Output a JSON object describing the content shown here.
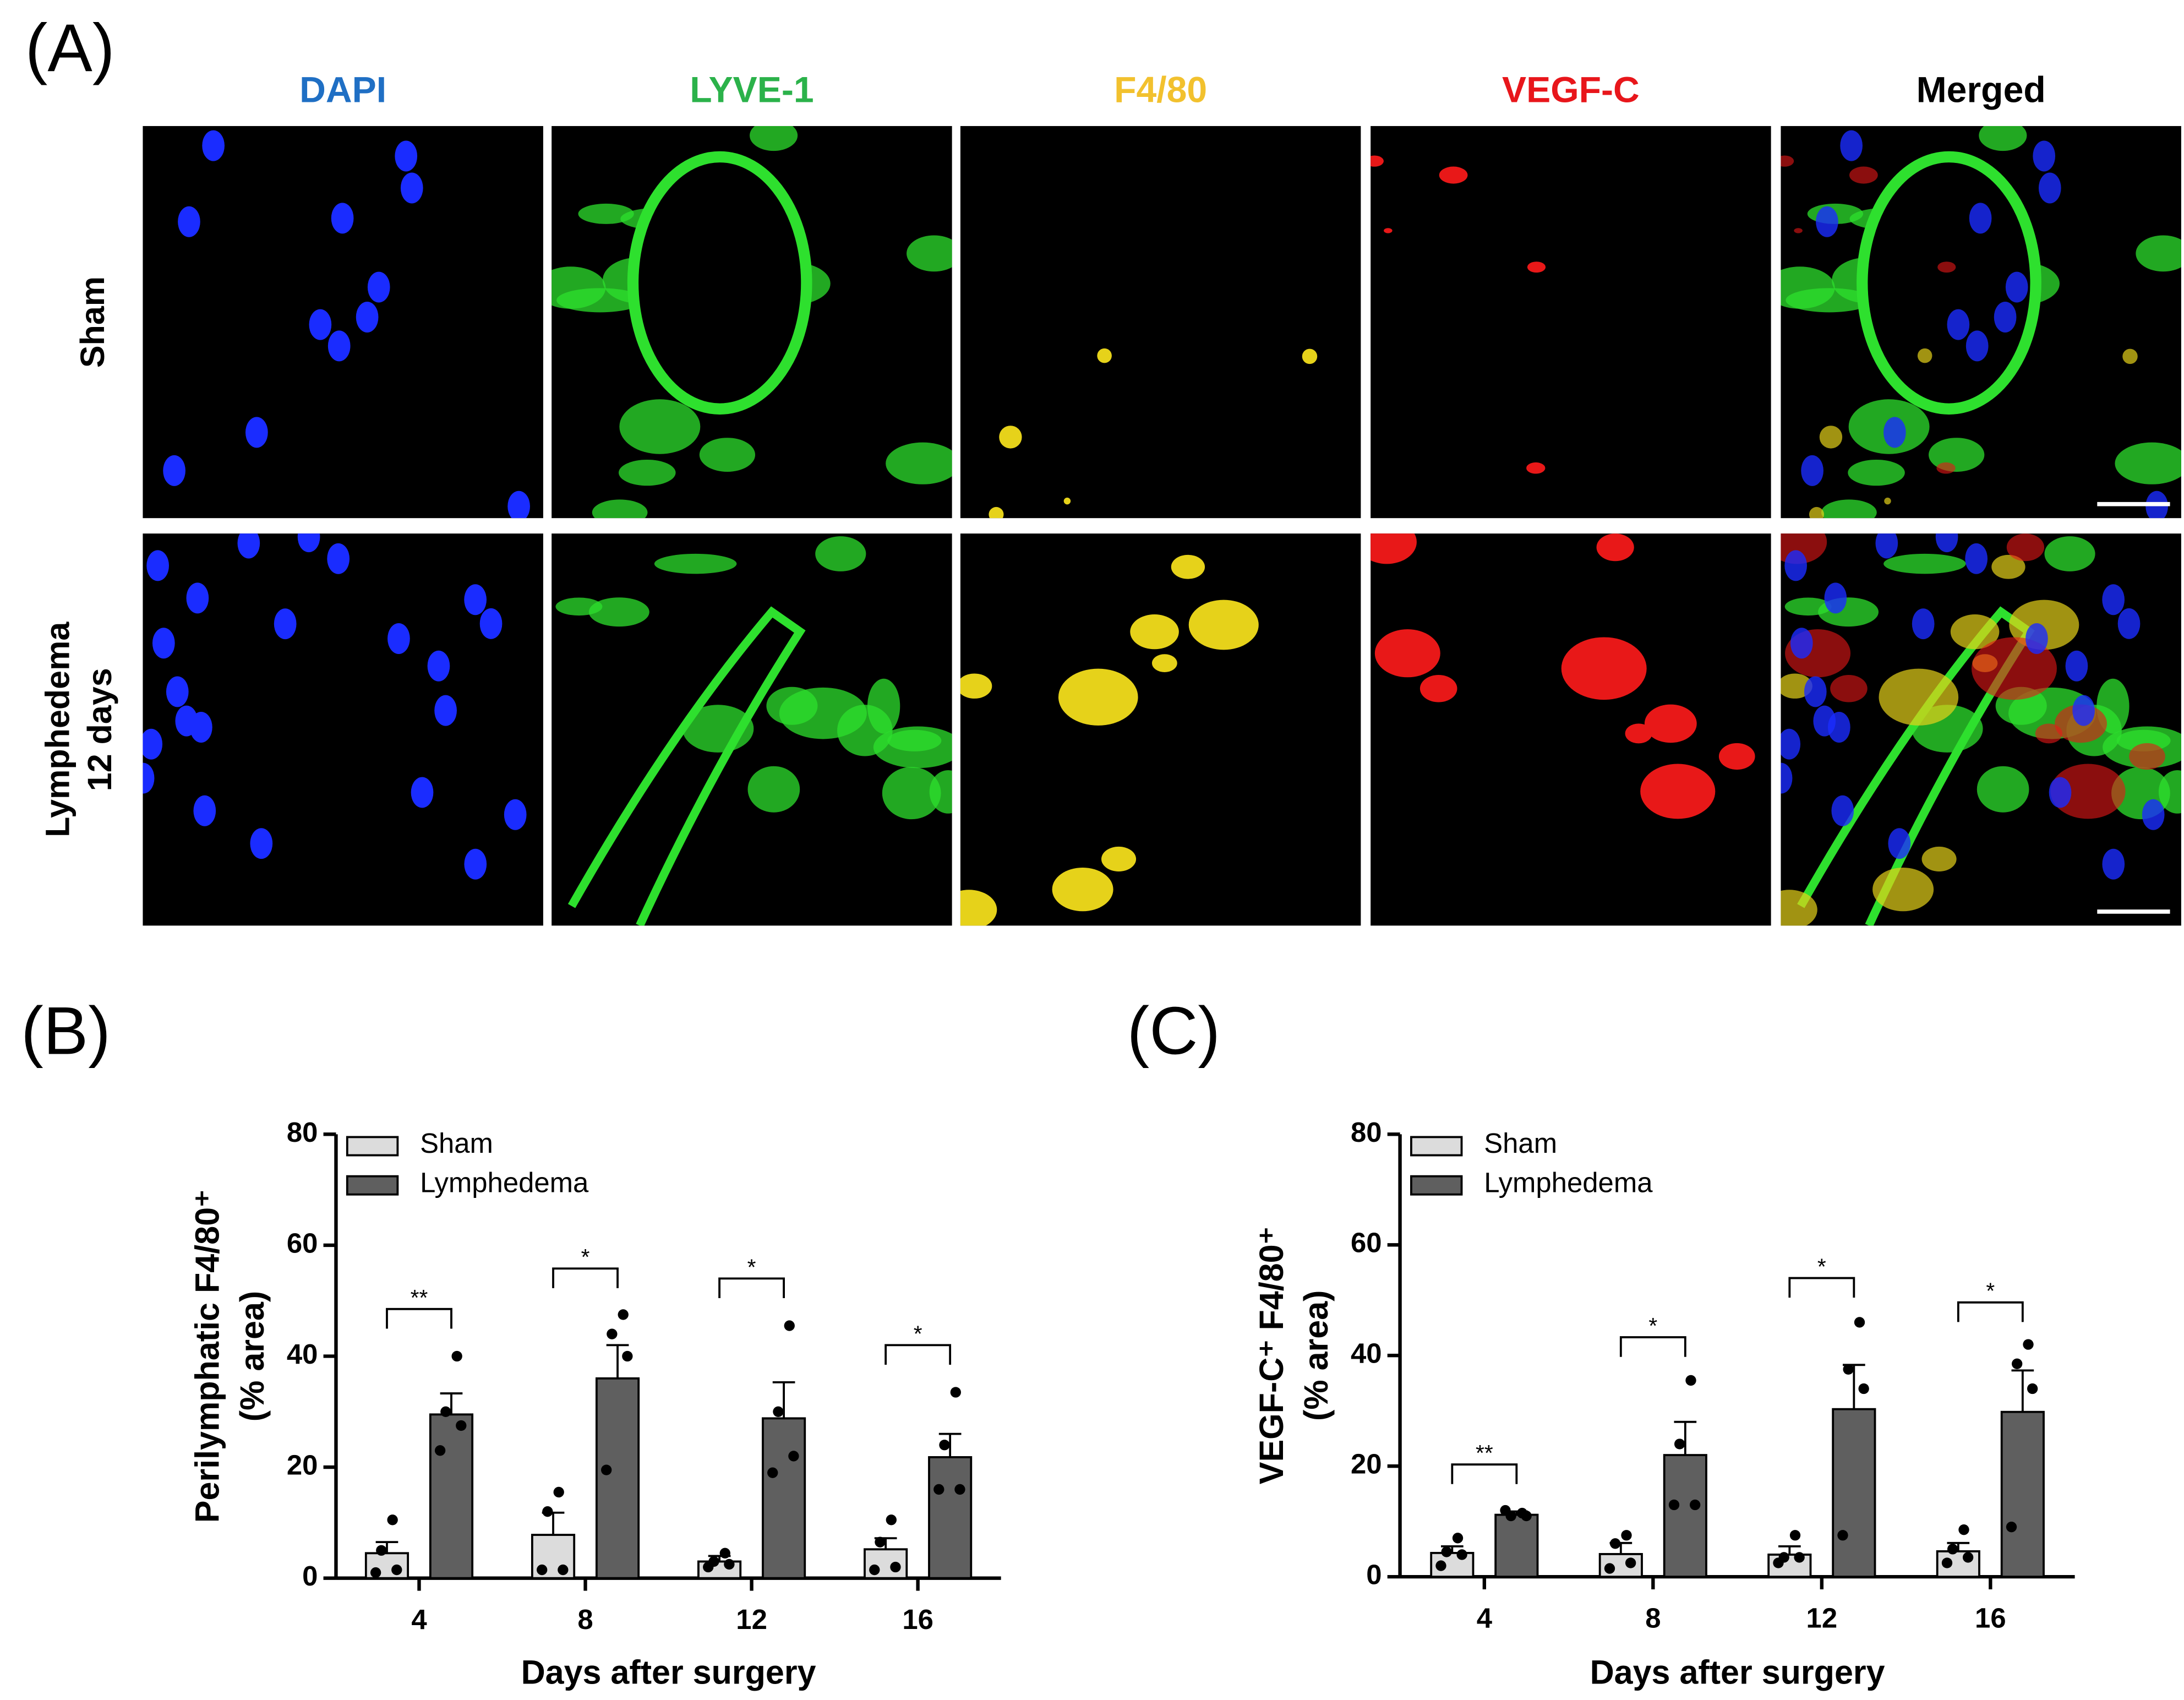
{
  "panel_a": {
    "label": "(A)",
    "columns": [
      {
        "name": "DAPI",
        "color": "#1f6fc4"
      },
      {
        "name": "LYVE-1",
        "color": "#2bb24a"
      },
      {
        "name": "F4/80",
        "color": "#f2c12e"
      },
      {
        "name": "VEGF-C",
        "color": "#e8161b"
      },
      {
        "name": "Merged",
        "color": "#000000"
      }
    ],
    "rows": [
      [
        "Sham"
      ],
      [
        "Lymphedema",
        "12 days"
      ]
    ]
  },
  "chart_data": [
    {
      "type": "bar",
      "panel_label": "(B)",
      "ylabel": [
        "Perilymphatic F4/80⁺",
        "(% area)"
      ],
      "xlabel": "Days after surgery",
      "categories": [
        "4",
        "8",
        "12",
        "16"
      ],
      "ylim": [
        0,
        80
      ],
      "yticks": [
        0,
        20,
        40,
        60,
        80
      ],
      "legend": "upper left",
      "series": [
        {
          "name": "Sham",
          "color": "#dcdcdc",
          "values": [
            4.5,
            7.8,
            3,
            5.2
          ],
          "errors": [
            2,
            4,
            1,
            2
          ],
          "points": [
            [
              10.5,
              5,
              1.5,
              1
            ],
            [
              15.5,
              12,
              1.5,
              1.5
            ],
            [
              4.5,
              3,
              2.5,
              2
            ],
            [
              10.5,
              6.5,
              2,
              1.5
            ]
          ]
        },
        {
          "name": "Lymphedema",
          "color": "#5f5f5f",
          "values": [
            29.5,
            36,
            28.8,
            21.8
          ],
          "errors": [
            3.8,
            6,
            6.5,
            4.2
          ],
          "points": [
            [
              40,
              30,
              27.5,
              23
            ],
            [
              47.5,
              44,
              40,
              19.5
            ],
            [
              45.5,
              30,
              22,
              19
            ],
            [
              33.5,
              24,
              16,
              16
            ]
          ]
        }
      ],
      "annotations": [
        {
          "label": "**",
          "y": 48.5
        },
        {
          "label": "*",
          "y": 55.8
        },
        {
          "label": "*",
          "y": 54
        },
        {
          "label": "*",
          "y": 42
        }
      ]
    },
    {
      "type": "bar",
      "panel_label": "(C)",
      "ylabel": [
        "VEGF-C⁺ F4/80⁺",
        "(% area)"
      ],
      "xlabel": "Days after surgery",
      "categories": [
        "4",
        "8",
        "12",
        "16"
      ],
      "ylim": [
        0,
        80
      ],
      "yticks": [
        0,
        20,
        40,
        60,
        80
      ],
      "legend": "upper left",
      "series": [
        {
          "name": "Sham",
          "color": "#dcdcdc",
          "values": [
            4.3,
            4.1,
            4.0,
            4.6
          ],
          "errors": [
            1.2,
            2,
            1.5,
            1.5
          ],
          "points": [
            [
              7,
              4.5,
              4,
              2
            ],
            [
              7.5,
              6,
              2.5,
              1.5
            ],
            [
              7.5,
              3.5,
              3.5,
              2.5
            ],
            [
              8.5,
              5,
              3.5,
              2.5
            ]
          ]
        },
        {
          "name": "Lymphedema",
          "color": "#5f5f5f",
          "values": [
            11.2,
            22,
            30.3,
            29.8
          ],
          "errors": [
            0.6,
            6,
            8,
            7.5
          ],
          "points": [
            [
              11.5,
              11,
              11,
              12
            ],
            [
              35.5,
              24,
              13,
              13
            ],
            [
              46,
              37.5,
              34,
              7.5
            ],
            [
              42,
              38.5,
              34,
              9
            ]
          ]
        }
      ],
      "annotations": [
        {
          "label": "**",
          "y": 20.3
        },
        {
          "label": "*",
          "y": 43.3
        },
        {
          "label": "*",
          "y": 54
        },
        {
          "label": "*",
          "y": 49.6
        }
      ]
    }
  ]
}
